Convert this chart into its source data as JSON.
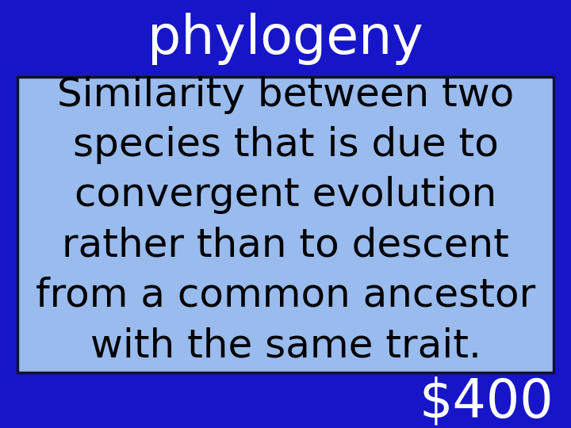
{
  "bg_color": "#1616c8",
  "box_color": "#99bbee",
  "box_edge_color": "#111133",
  "title": "phylogeny",
  "title_color": "#ffffff",
  "title_fontsize": 48,
  "body_text": "Similarity between two\nspecies that is due to\nconvergent evolution\nrather than to descent\nfrom a common ancestor\nwith the same trait.",
  "body_color": "#000000",
  "body_fontsize": 36,
  "money": "$400",
  "money_color": "#ffffff",
  "money_fontsize": 48,
  "fig_width": 7.2,
  "fig_height": 5.4,
  "dpi": 100
}
